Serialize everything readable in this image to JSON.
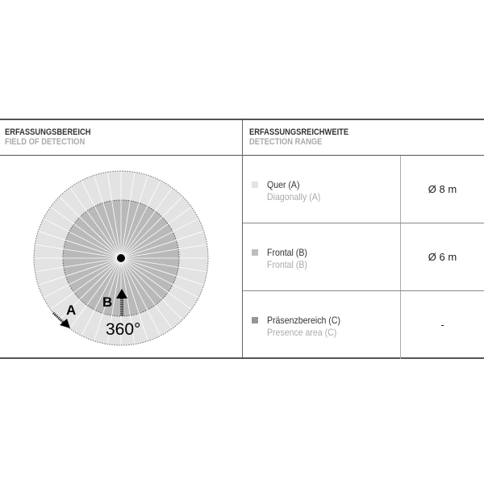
{
  "left_header": {
    "title": "ERFASSUNGSBEREICH",
    "subtitle": "FIELD OF DETECTION"
  },
  "right_header": {
    "title": "ERFASSUNGSREICHWEITE",
    "subtitle": "DETECTION RANGE"
  },
  "diagram": {
    "label_a": "A",
    "label_b": "B",
    "angle": "360°",
    "colors": {
      "outer": "#e3e3e3",
      "inner": "#b9b9b9"
    }
  },
  "rows": [
    {
      "de": "Quer (A)",
      "en": "Diagonally (A)",
      "value": "Ø 8 m",
      "color": "#e3e3e3"
    },
    {
      "de": "Frontal (B)",
      "en": "Frontal (B)",
      "value": "Ø 6 m",
      "color": "#bdbdbd"
    },
    {
      "de": "Präsenzbereich (C)",
      "en": "Presence area (C)",
      "value": "-",
      "color": "#969696"
    }
  ]
}
